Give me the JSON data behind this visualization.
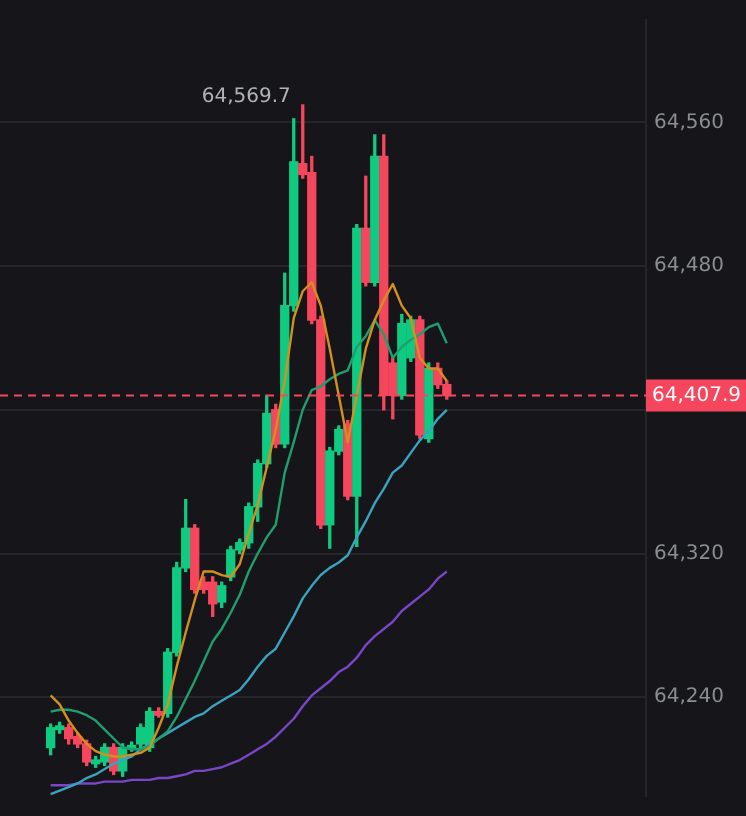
{
  "chart_data": {
    "type": "candlestick",
    "categories": [
      null,
      null,
      null,
      null,
      null,
      null,
      null,
      null,
      null,
      null,
      null,
      null,
      null,
      null,
      null,
      null,
      null,
      null,
      null,
      null,
      null,
      null,
      null,
      null,
      null,
      null,
      null,
      null,
      null,
      null,
      null,
      null,
      null,
      null,
      null,
      null,
      null,
      null,
      null,
      null,
      null,
      null,
      null,
      null,
      null
    ],
    "series": [
      {
        "ohlc": [
          [
            64212,
            64225,
            64208,
            64223
          ],
          [
            64222,
            64226,
            64220,
            64224
          ],
          [
            64223,
            64225,
            64214,
            64217
          ],
          [
            64218,
            64220,
            64212,
            64214
          ],
          [
            64214,
            64216,
            64202,
            64204
          ],
          [
            64203,
            64207,
            64201,
            64205
          ],
          [
            64204,
            64214,
            64202,
            64212
          ],
          [
            64212,
            64214,
            64197,
            64199
          ],
          [
            64199,
            64214,
            64196,
            64212
          ],
          [
            64212,
            64215,
            64210,
            64213
          ],
          [
            64214,
            64225,
            64212,
            64223
          ],
          [
            64212,
            64234,
            64210,
            64232
          ],
          [
            64232,
            64234,
            64229,
            64230
          ],
          [
            64231,
            64267,
            64229,
            64265
          ],
          [
            64265,
            64315,
            64263,
            64312
          ],
          [
            64312,
            64350,
            64310,
            64334
          ],
          [
            64334,
            64336,
            64298,
            64300
          ],
          [
            64304,
            64307,
            64298,
            64300
          ],
          [
            64304,
            64307,
            64285,
            64292
          ],
          [
            64293,
            64304,
            64290,
            64302
          ],
          [
            64307,
            64324,
            64305,
            64322
          ],
          [
            64322,
            64328,
            64320,
            64326
          ],
          [
            64326,
            64348,
            64323,
            64346
          ],
          [
            64346,
            64372,
            64338,
            64370
          ],
          [
            64370,
            64408,
            64368,
            64398
          ],
          [
            64400,
            64403,
            64379,
            64381
          ],
          [
            64381,
            64476,
            64379,
            64458
          ],
          [
            64458,
            64562,
            64455,
            64538
          ],
          [
            64537,
            64569.7,
            64529,
            64531
          ],
          [
            64532,
            64541,
            64448,
            64450
          ],
          [
            64450,
            64452,
            64334,
            64336
          ],
          [
            64336,
            64379,
            64323,
            64377
          ],
          [
            64377,
            64391,
            64375,
            64389
          ],
          [
            64392,
            64394,
            64350,
            64352
          ],
          [
            64352,
            64503,
            64324,
            64501
          ],
          [
            64501,
            64530,
            64469,
            64471
          ],
          [
            64471,
            64553,
            64469,
            64541
          ],
          [
            64541,
            64553,
            64400,
            64408
          ],
          [
            64426,
            64429,
            64395,
            64408
          ],
          [
            64408,
            64453,
            64406,
            64448
          ],
          [
            64429,
            64452,
            64427,
            64450
          ],
          [
            64450,
            64452,
            64384,
            64386
          ],
          [
            64384,
            64426,
            64382,
            64423
          ],
          [
            64423,
            64426,
            64412,
            64414
          ],
          [
            64414,
            64416,
            64406,
            64407.9
          ]
        ]
      },
      {
        "type": "line",
        "color": "#d4901c",
        "values": [
          64241,
          64236,
          64227,
          64220,
          64214,
          64210,
          64208,
          64207,
          64207,
          64208,
          64209,
          64212,
          64223,
          64236,
          64257,
          64276,
          64294,
          64310,
          64310,
          64308,
          64307,
          64314,
          64331,
          64347,
          64368,
          64389,
          64416,
          64451,
          64466,
          64471,
          64458,
          64434,
          64408,
          64382,
          64408,
          64434,
          64450,
          64461,
          64470,
          64458,
          64451,
          64429,
          64423,
          64423,
          64416
        ]
      },
      {
        "type": "line",
        "color": "#1f9e6e",
        "values": [
          64232,
          64233,
          64233,
          64232,
          64230,
          64227,
          64222,
          64217,
          64212,
          64211,
          64211,
          64213,
          64217,
          64221,
          64229,
          64239,
          64249,
          64260,
          64271,
          64278,
          64287,
          64297,
          64310,
          64320,
          64329,
          64336,
          64365,
          64382,
          64400,
          64411,
          64413,
          64417,
          64420,
          64422,
          64435,
          64441,
          64450,
          64442,
          64429,
          64435,
          64439,
          64442,
          64446,
          64448,
          64437
        ]
      },
      {
        "type": "line",
        "color": "#3aa3bf",
        "values": [
          64186,
          64188,
          64190,
          64192,
          64195,
          64197,
          64200,
          64203,
          64205,
          64207,
          64211,
          64214,
          64217,
          64220,
          64223,
          64226,
          64229,
          64231,
          64235,
          64238,
          64241,
          64244,
          64250,
          64257,
          64263,
          64267,
          64276,
          64285,
          64295,
          64302,
          64308,
          64312,
          64315,
          64319,
          64329,
          64338,
          64348,
          64356,
          64365,
          64369,
          64376,
          64383,
          64388,
          64395,
          64400
        ]
      },
      {
        "type": "line",
        "color": "#7b45c8",
        "values": [
          64191,
          64191,
          64191,
          64192,
          64192,
          64192,
          64193,
          64193,
          64193,
          64194,
          64194,
          64194,
          64195,
          64195,
          64196,
          64197,
          64199,
          64199,
          64200,
          64201,
          64203,
          64205,
          64208,
          64211,
          64214,
          64218,
          64223,
          64228,
          64235,
          64241,
          64245,
          64249,
          64254,
          64257,
          64262,
          64269,
          64274,
          64278,
          64282,
          64288,
          64292,
          64296,
          64300,
          64306,
          64310
        ]
      }
    ],
    "ylim": [
      64185,
      64617
    ],
    "yticks": [
      {
        "value": 64240,
        "label": "64,240"
      },
      {
        "value": 64320,
        "label": "64,320"
      },
      {
        "value": 64400,
        "label": null
      },
      {
        "value": 64480,
        "label": "64,480"
      },
      {
        "value": 64560,
        "label": "64,560"
      }
    ],
    "grid": "y",
    "legend": false,
    "tick_labels": "y",
    "marker": "none",
    "ref_lines": [
      {
        "axis": "y",
        "value": 64407.9,
        "label": "64,407.9",
        "color": "#f6465d",
        "line_style": "dashed"
      }
    ],
    "annotations": [
      "64,569.7"
    ]
  }
}
